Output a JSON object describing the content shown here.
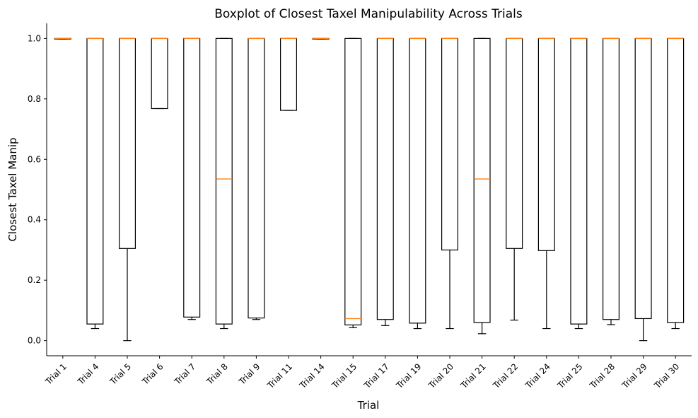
{
  "chart_data": {
    "type": "boxplot",
    "title": "Boxplot of Closest Taxel Manipulability Across Trials",
    "xlabel": "Trial",
    "ylabel": "Closest Taxel Manip",
    "ylim": [
      -0.05,
      1.05
    ],
    "yticks": [
      "0.0",
      "0.2",
      "0.4",
      "0.6",
      "0.8",
      "1.0"
    ],
    "grid": false,
    "colors": {
      "box": "#000000",
      "median": "#ff7f0e"
    },
    "categories": [
      "Trial 1",
      "Trial 4",
      "Trial 5",
      "Trial 6",
      "Trial 7",
      "Trial 8",
      "Trial 9",
      "Trial 11",
      "Trial 14",
      "Trial 15",
      "Trial 17",
      "Trial 19",
      "Trial 20",
      "Trial 21",
      "Trial 22",
      "Trial 24",
      "Trial 25",
      "Trial 28",
      "Trial 29",
      "Trial 30"
    ],
    "boxes": [
      {
        "whislo": 0.998,
        "q1": 0.998,
        "med": 1.0,
        "q3": 1.0,
        "whishi": 1.0
      },
      {
        "whislo": 0.04,
        "q1": 0.055,
        "med": 1.0,
        "q3": 1.0,
        "whishi": 1.0
      },
      {
        "whislo": 0.0,
        "q1": 0.305,
        "med": 1.0,
        "q3": 1.0,
        "whishi": 1.0
      },
      {
        "whislo": 0.768,
        "q1": 0.768,
        "med": 1.0,
        "q3": 1.0,
        "whishi": 1.0
      },
      {
        "whislo": 0.07,
        "q1": 0.078,
        "med": 1.0,
        "q3": 1.0,
        "whishi": 1.0
      },
      {
        "whislo": 0.04,
        "q1": 0.055,
        "med": 0.535,
        "q3": 1.0,
        "whishi": 1.0
      },
      {
        "whislo": 0.07,
        "q1": 0.075,
        "med": 1.0,
        "q3": 1.0,
        "whishi": 1.0
      },
      {
        "whislo": 0.762,
        "q1": 0.762,
        "med": 1.0,
        "q3": 1.0,
        "whishi": 1.0
      },
      {
        "whislo": 0.998,
        "q1": 0.998,
        "med": 1.0,
        "q3": 1.0,
        "whishi": 1.0
      },
      {
        "whislo": 0.043,
        "q1": 0.052,
        "med": 0.073,
        "q3": 1.0,
        "whishi": 1.0
      },
      {
        "whislo": 0.05,
        "q1": 0.07,
        "med": 1.0,
        "q3": 1.0,
        "whishi": 1.0
      },
      {
        "whislo": 0.04,
        "q1": 0.058,
        "med": 1.0,
        "q3": 1.0,
        "whishi": 1.0
      },
      {
        "whislo": 0.04,
        "q1": 0.3,
        "med": 1.0,
        "q3": 1.0,
        "whishi": 1.0
      },
      {
        "whislo": 0.023,
        "q1": 0.06,
        "med": 0.535,
        "q3": 1.0,
        "whishi": 1.0
      },
      {
        "whislo": 0.068,
        "q1": 0.305,
        "med": 1.0,
        "q3": 1.0,
        "whishi": 1.0
      },
      {
        "whislo": 0.04,
        "q1": 0.298,
        "med": 1.0,
        "q3": 1.0,
        "whishi": 1.0
      },
      {
        "whislo": 0.04,
        "q1": 0.055,
        "med": 1.0,
        "q3": 1.0,
        "whishi": 1.0
      },
      {
        "whislo": 0.053,
        "q1": 0.07,
        "med": 1.0,
        "q3": 1.0,
        "whishi": 1.0
      },
      {
        "whislo": 0.0,
        "q1": 0.073,
        "med": 1.0,
        "q3": 1.0,
        "whishi": 1.0
      },
      {
        "whislo": 0.04,
        "q1": 0.06,
        "med": 1.0,
        "q3": 1.0,
        "whishi": 1.0
      }
    ]
  }
}
